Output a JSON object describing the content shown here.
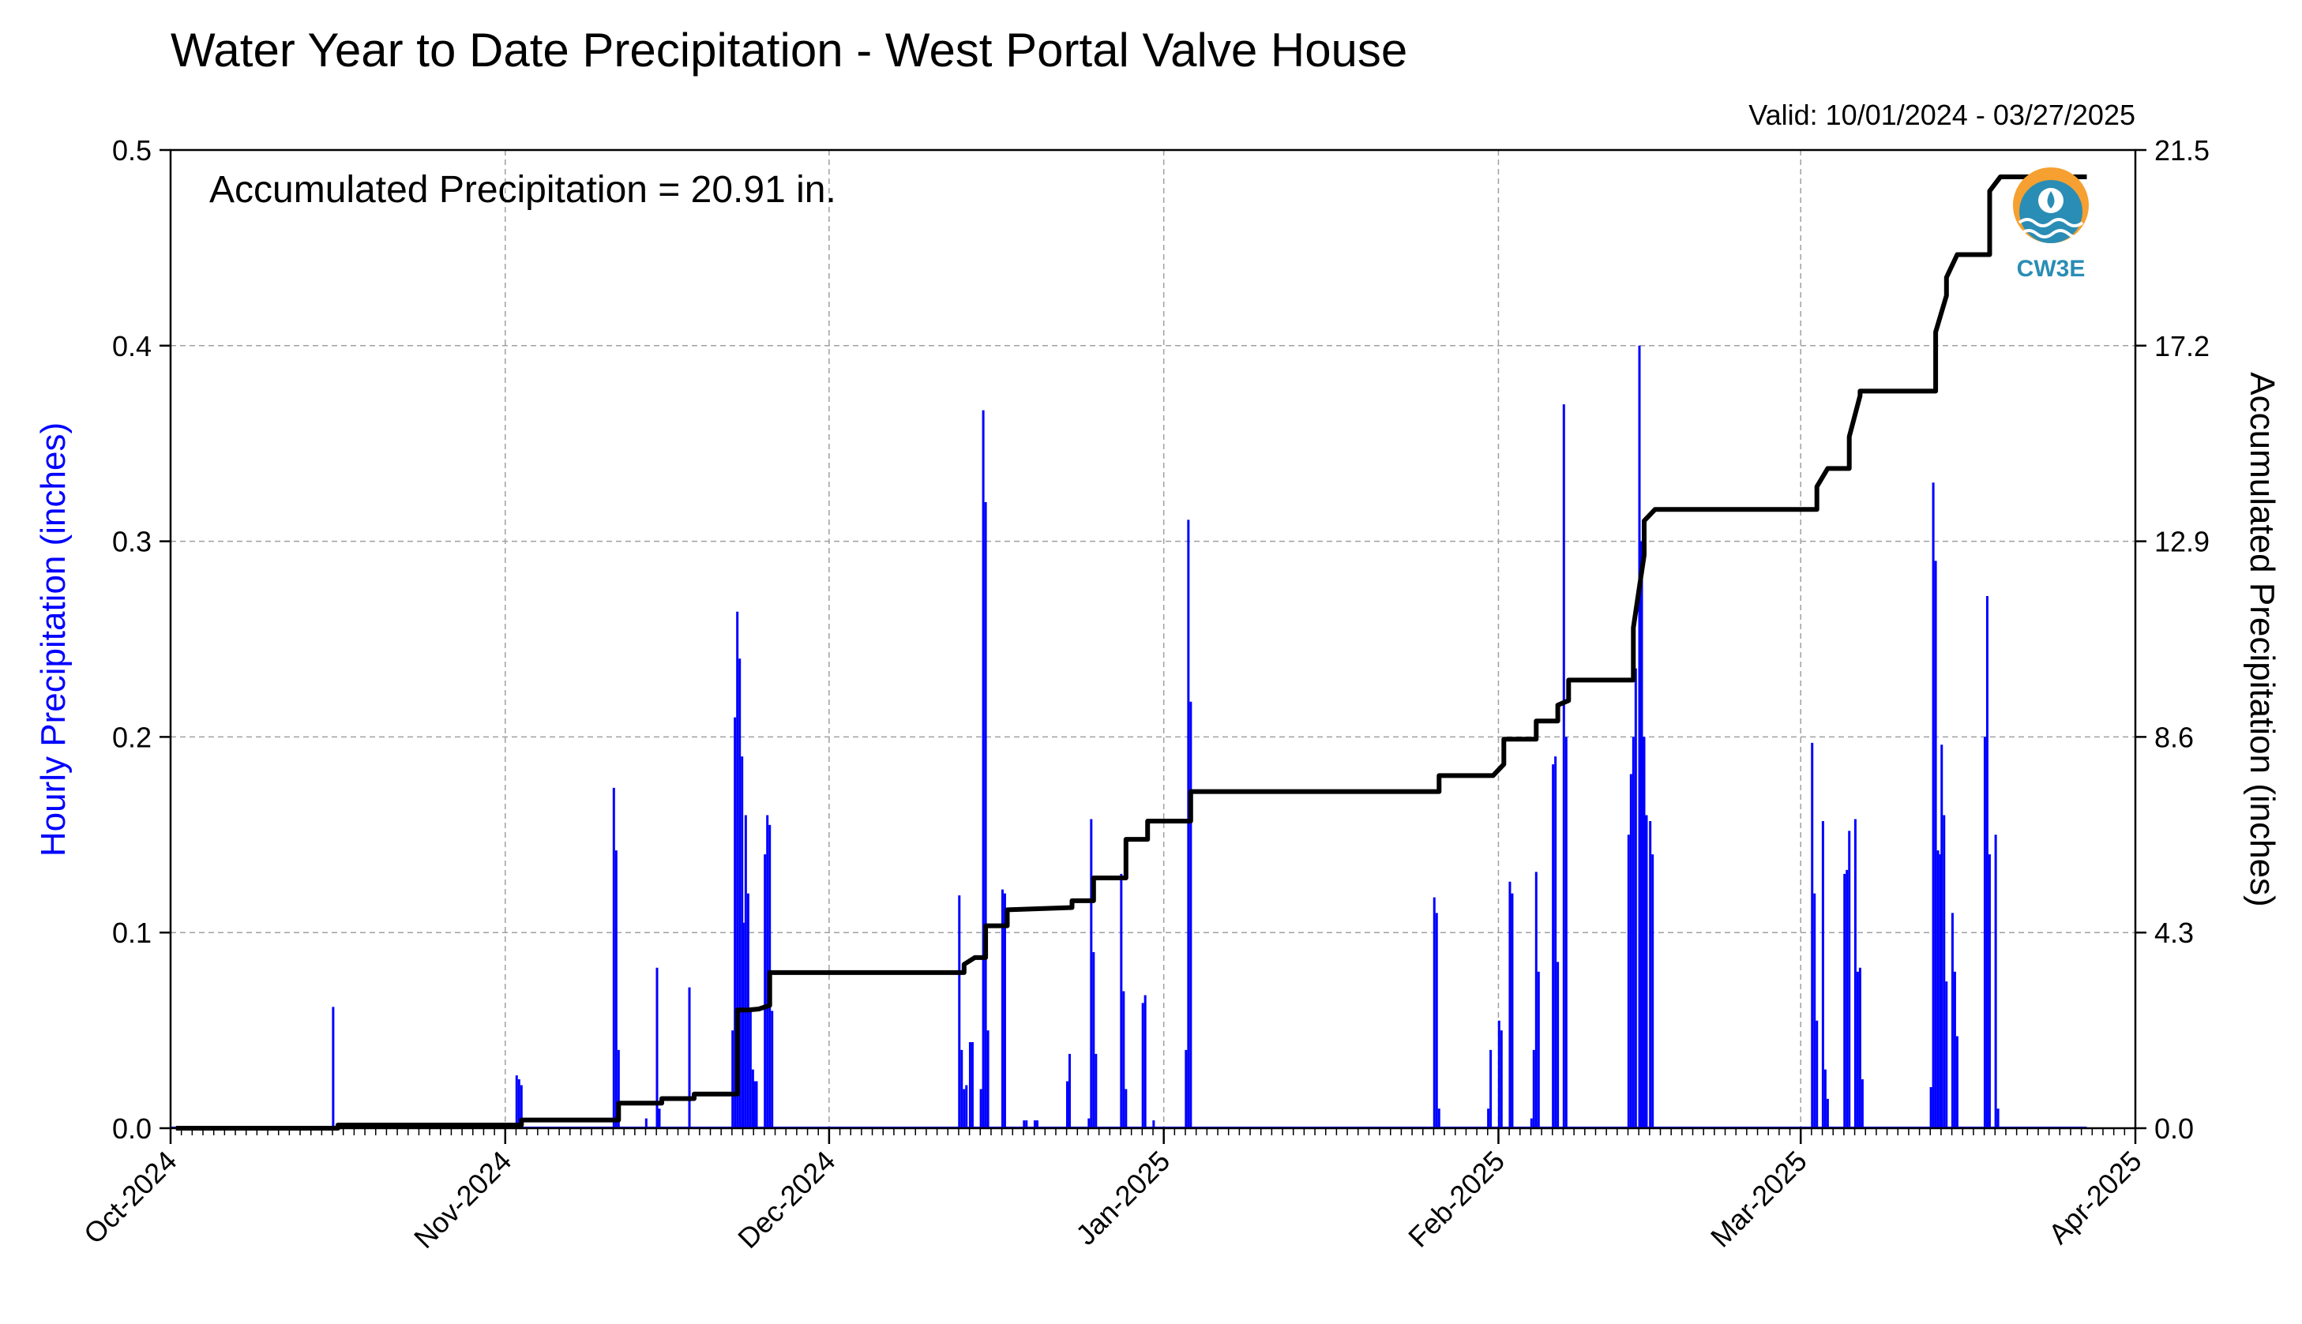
{
  "chart_data": {
    "type": "line",
    "title": "Water Year to Date Precipitation - West Portal Valve House",
    "valid_text": "Valid: 10/01/2024 - 03/27/2025",
    "annotation": "Accumulated Precipitation = 20.91 in.",
    "logo_text": "CW3E",
    "xlabel": "",
    "ylabel_left": "Hourly Precipitation (inches)",
    "ylabel_right": "Accumulated Precipitation (inches)",
    "x_start": "2024-10-01",
    "x_end": "2025-04-01",
    "x_ticks": [
      {
        "date": "2024-10-01",
        "label": "Oct-2024"
      },
      {
        "date": "2024-11-01",
        "label": "Nov-2024"
      },
      {
        "date": "2024-12-01",
        "label": "Dec-2024"
      },
      {
        "date": "2025-01-01",
        "label": "Jan-2025"
      },
      {
        "date": "2025-02-01",
        "label": "Feb-2025"
      },
      {
        "date": "2025-03-01",
        "label": "Mar-2025"
      },
      {
        "date": "2025-04-01",
        "label": "Apr-2025"
      }
    ],
    "ylim_left": [
      0,
      0.5
    ],
    "yticks_left": [
      "0.0",
      "0.1",
      "0.2",
      "0.3",
      "0.4",
      "0.5"
    ],
    "ylim_right": [
      0,
      21.5
    ],
    "yticks_right": [
      "0.0",
      "4.3",
      "8.6",
      "12.9",
      "17.2",
      "21.5"
    ],
    "grid": true,
    "series": [
      {
        "type": "bar",
        "axis": "left",
        "color": "#0000ff",
        "points": [
          [
            "2024-10-16",
            0.062
          ],
          [
            "2024-11-02",
            0.027
          ],
          [
            "2024-11-02",
            0.025
          ],
          [
            "2024-11-02",
            0.022
          ],
          [
            "2024-11-11",
            0.174
          ],
          [
            "2024-11-11",
            0.142
          ],
          [
            "2024-11-11",
            0.04
          ],
          [
            "2024-11-14",
            0.005
          ],
          [
            "2024-11-15",
            0.082
          ],
          [
            "2024-11-15",
            0.01
          ],
          [
            "2024-11-18",
            0.072
          ],
          [
            "2024-11-22",
            0.05
          ],
          [
            "2024-11-22",
            0.21
          ],
          [
            "2024-11-22",
            0.264
          ],
          [
            "2024-11-22",
            0.24
          ],
          [
            "2024-11-22",
            0.19
          ],
          [
            "2024-11-23",
            0.105
          ],
          [
            "2024-11-23",
            0.16
          ],
          [
            "2024-11-23",
            0.12
          ],
          [
            "2024-11-23",
            0.06
          ],
          [
            "2024-11-23",
            0.03
          ],
          [
            "2024-11-24",
            0.024
          ],
          [
            "2024-11-24",
            0.024
          ],
          [
            "2024-11-25",
            0.14
          ],
          [
            "2024-11-25",
            0.16
          ],
          [
            "2024-11-25",
            0.155
          ],
          [
            "2024-11-25",
            0.06
          ],
          [
            "2024-12-13",
            0.119
          ],
          [
            "2024-12-13",
            0.04
          ],
          [
            "2024-12-13",
            0.02
          ],
          [
            "2024-12-13",
            0.022
          ],
          [
            "2024-12-14",
            0.044
          ],
          [
            "2024-12-14",
            0.044
          ],
          [
            "2024-12-15",
            0.02
          ],
          [
            "2024-12-15",
            0.367
          ],
          [
            "2024-12-15",
            0.32
          ],
          [
            "2024-12-15",
            0.05
          ],
          [
            "2024-12-17",
            0.122
          ],
          [
            "2024-12-17",
            0.12
          ],
          [
            "2024-12-19",
            0.004
          ],
          [
            "2024-12-19",
            0.004
          ],
          [
            "2024-12-20",
            0.004
          ],
          [
            "2024-12-20",
            0.004
          ],
          [
            "2024-12-23",
            0.024
          ],
          [
            "2024-12-23",
            0.038
          ],
          [
            "2024-12-25",
            0.005
          ],
          [
            "2024-12-25",
            0.158
          ],
          [
            "2024-12-25",
            0.09
          ],
          [
            "2024-12-25",
            0.038
          ],
          [
            "2024-12-28",
            0.13
          ],
          [
            "2024-12-28",
            0.07
          ],
          [
            "2024-12-28",
            0.02
          ],
          [
            "2024-12-30",
            0.064
          ],
          [
            "2024-12-30",
            0.068
          ],
          [
            "2024-12-31",
            0.004
          ],
          [
            "2025-01-03",
            0.04
          ],
          [
            "2025-01-03",
            0.311
          ],
          [
            "2025-01-03",
            0.218
          ],
          [
            "2025-01-26",
            0.118
          ],
          [
            "2025-01-26",
            0.11
          ],
          [
            "2025-01-26",
            0.01
          ],
          [
            "2025-01-31",
            0.01
          ],
          [
            "2025-01-31",
            0.04
          ],
          [
            "2025-02-01",
            0.055
          ],
          [
            "2025-02-01",
            0.05
          ],
          [
            "2025-02-02",
            0.126
          ],
          [
            "2025-02-02",
            0.12
          ],
          [
            "2025-02-04",
            0.005
          ],
          [
            "2025-02-04",
            0.04
          ],
          [
            "2025-02-04",
            0.131
          ],
          [
            "2025-02-04",
            0.08
          ],
          [
            "2025-02-06",
            0.186
          ],
          [
            "2025-02-06",
            0.19
          ],
          [
            "2025-02-06",
            0.085
          ],
          [
            "2025-02-07",
            0.37
          ],
          [
            "2025-02-07",
            0.2
          ],
          [
            "2025-02-13",
            0.15
          ],
          [
            "2025-02-13",
            0.181
          ],
          [
            "2025-02-13",
            0.2
          ],
          [
            "2025-02-13",
            0.235
          ],
          [
            "2025-02-14",
            0.4
          ],
          [
            "2025-02-14",
            0.3
          ],
          [
            "2025-02-14",
            0.2
          ],
          [
            "2025-02-14",
            0.16
          ],
          [
            "2025-02-15",
            0.157
          ],
          [
            "2025-02-15",
            0.14
          ],
          [
            "2025-03-02",
            0.197
          ],
          [
            "2025-03-02",
            0.12
          ],
          [
            "2025-03-02",
            0.055
          ],
          [
            "2025-03-03",
            0.157
          ],
          [
            "2025-03-03",
            0.03
          ],
          [
            "2025-03-03",
            0.015
          ],
          [
            "2025-03-05",
            0.13
          ],
          [
            "2025-03-05",
            0.132
          ],
          [
            "2025-03-05",
            0.152
          ],
          [
            "2025-03-06",
            0.158
          ],
          [
            "2025-03-06",
            0.08
          ],
          [
            "2025-03-06",
            0.082
          ],
          [
            "2025-03-06",
            0.025
          ],
          [
            "2025-03-13",
            0.021
          ],
          [
            "2025-03-13",
            0.33
          ],
          [
            "2025-03-13",
            0.29
          ],
          [
            "2025-03-13",
            0.142
          ],
          [
            "2025-03-13",
            0.14
          ],
          [
            "2025-03-14",
            0.196
          ],
          [
            "2025-03-14",
            0.16
          ],
          [
            "2025-03-14",
            0.075
          ],
          [
            "2025-03-15",
            0.11
          ],
          [
            "2025-03-15",
            0.08
          ],
          [
            "2025-03-15",
            0.047
          ],
          [
            "2025-03-18",
            0.2
          ],
          [
            "2025-03-18",
            0.272
          ],
          [
            "2025-03-18",
            0.14
          ],
          [
            "2025-03-19",
            0.15
          ],
          [
            "2025-03-19",
            0.01
          ]
        ]
      },
      {
        "type": "line",
        "axis": "right",
        "color": "#000000",
        "points": [
          [
            "2024-10-01",
            0.0
          ],
          [
            "2024-10-16",
            0.0
          ],
          [
            "2024-10-16",
            0.07
          ],
          [
            "2024-11-02",
            0.07
          ],
          [
            "2024-11-02",
            0.18
          ],
          [
            "2024-11-11",
            0.18
          ],
          [
            "2024-11-11",
            0.55
          ],
          [
            "2024-11-15",
            0.55
          ],
          [
            "2024-11-15",
            0.65
          ],
          [
            "2024-11-18",
            0.65
          ],
          [
            "2024-11-18",
            0.75
          ],
          [
            "2024-11-22",
            0.75
          ],
          [
            "2024-11-22",
            2.6
          ],
          [
            "2024-11-23",
            2.6
          ],
          [
            "2024-11-23",
            2.6
          ],
          [
            "2024-11-24",
            2.62
          ],
          [
            "2024-11-25",
            2.7
          ],
          [
            "2024-11-25",
            3.42
          ],
          [
            "2024-12-13",
            3.42
          ],
          [
            "2024-12-13",
            3.6
          ],
          [
            "2024-12-14",
            3.75
          ],
          [
            "2024-12-15",
            3.75
          ],
          [
            "2024-12-15",
            4.45
          ],
          [
            "2024-12-17",
            4.45
          ],
          [
            "2024-12-17",
            4.8
          ],
          [
            "2024-12-23",
            4.85
          ],
          [
            "2024-12-23",
            5.0
          ],
          [
            "2024-12-25",
            5.0
          ],
          [
            "2024-12-25",
            5.5
          ],
          [
            "2024-12-28",
            5.5
          ],
          [
            "2024-12-28",
            6.35
          ],
          [
            "2024-12-30",
            6.35
          ],
          [
            "2024-12-30",
            6.75
          ],
          [
            "2025-01-03",
            6.75
          ],
          [
            "2025-01-03",
            7.4
          ],
          [
            "2025-01-26",
            7.4
          ],
          [
            "2025-01-26",
            7.75
          ],
          [
            "2025-01-31",
            7.75
          ],
          [
            "2025-02-01",
            8.0
          ],
          [
            "2025-02-01",
            8.55
          ],
          [
            "2025-02-04",
            8.55
          ],
          [
            "2025-02-04",
            8.95
          ],
          [
            "2025-02-06",
            8.95
          ],
          [
            "2025-02-06",
            9.3
          ],
          [
            "2025-02-07",
            9.4
          ],
          [
            "2025-02-07",
            9.85
          ],
          [
            "2025-02-13",
            9.85
          ],
          [
            "2025-02-13",
            11.0
          ],
          [
            "2025-02-14",
            12.6
          ],
          [
            "2025-02-14",
            13.35
          ],
          [
            "2025-02-15",
            13.6
          ],
          [
            "2025-03-02",
            13.6
          ],
          [
            "2025-03-02",
            14.1
          ],
          [
            "2025-03-03",
            14.5
          ],
          [
            "2025-03-05",
            14.5
          ],
          [
            "2025-03-05",
            15.2
          ],
          [
            "2025-03-06",
            16.1
          ],
          [
            "2025-03-06",
            16.2
          ],
          [
            "2025-03-13",
            16.2
          ],
          [
            "2025-03-13",
            17.5
          ],
          [
            "2025-03-14",
            18.3
          ],
          [
            "2025-03-14",
            18.7
          ],
          [
            "2025-03-15",
            19.2
          ],
          [
            "2025-03-15",
            19.2
          ],
          [
            "2025-03-18",
            19.2
          ],
          [
            "2025-03-18",
            20.6
          ],
          [
            "2025-03-19",
            20.91
          ],
          [
            "2025-03-27",
            20.91
          ]
        ]
      }
    ]
  }
}
